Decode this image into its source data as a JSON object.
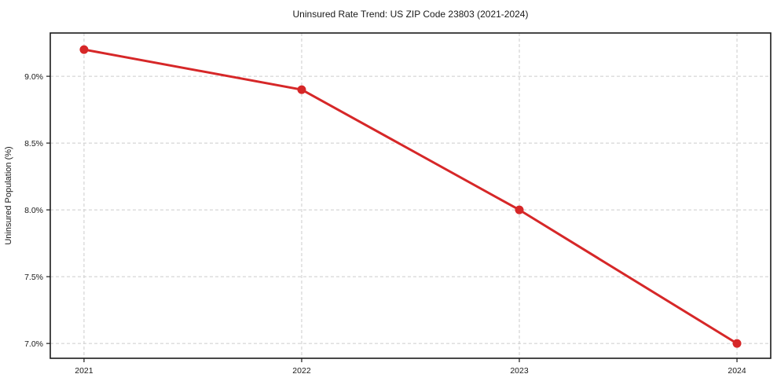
{
  "chart_data": {
    "type": "line",
    "title": "Uninsured Rate Trend: US ZIP Code 23803 (2021-2024)",
    "xlabel": "",
    "ylabel": "Uninsured Population (%)",
    "x": [
      2021,
      2022,
      2023,
      2024
    ],
    "x_tick_labels": [
      "2021",
      "2022",
      "2023",
      "2024"
    ],
    "series": [
      {
        "name": "uninsured-rate",
        "values": [
          9.2,
          8.9,
          8.0,
          7.0
        ]
      }
    ],
    "y_ticks": [
      7.0,
      7.5,
      8.0,
      8.5,
      9.0
    ],
    "y_tick_labels": [
      "7.0%",
      "7.5%",
      "8.0%",
      "8.5%",
      "9.0%"
    ],
    "xlim": [
      2020.845,
      2024.155
    ],
    "ylim": [
      6.889,
      9.324
    ],
    "grid": true,
    "grid_style": "dashed",
    "legend": "none",
    "colors": {
      "line": "#d62728",
      "marker": "#d62728",
      "grid": "#cccccc",
      "axis_border": "#1a1a1a",
      "text": "#1a1a1a",
      "background": "#ffffff"
    }
  }
}
